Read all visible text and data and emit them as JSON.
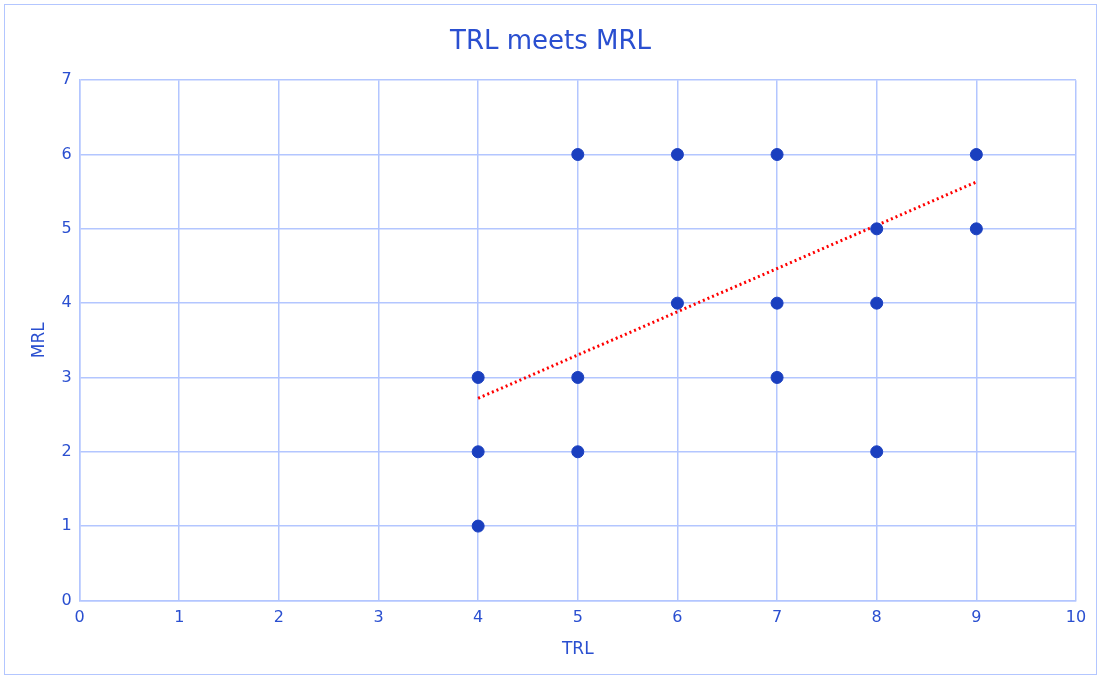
{
  "chart_data": {
    "type": "scatter",
    "title": "TRL meets MRL",
    "xlabel": "TRL",
    "ylabel": "MRL",
    "xlim": [
      0,
      10
    ],
    "xticks": [
      0,
      1,
      2,
      3,
      4,
      5,
      6,
      7,
      8,
      9,
      10
    ],
    "ylim": [
      0,
      7
    ],
    "yticks": [
      0,
      1,
      2,
      3,
      4,
      5,
      6,
      7
    ],
    "grid": true,
    "legend": false,
    "marker": "circle",
    "series": [
      {
        "color": "#1a3fbf",
        "x": [
          4,
          4,
          4,
          5,
          5,
          5,
          6,
          6,
          7,
          7,
          7,
          8,
          8,
          8,
          9,
          9
        ],
        "values": [
          1,
          2,
          3,
          2,
          3,
          6,
          4,
          6,
          3,
          4,
          6,
          2,
          4,
          5,
          5,
          6
        ]
      },
      {
        "type": "line",
        "color": "#ff0000",
        "x": [
          4,
          9
        ],
        "values": [
          2.72,
          5.63
        ],
        "line_style": "dotted",
        "marker": "none"
      }
    ]
  }
}
